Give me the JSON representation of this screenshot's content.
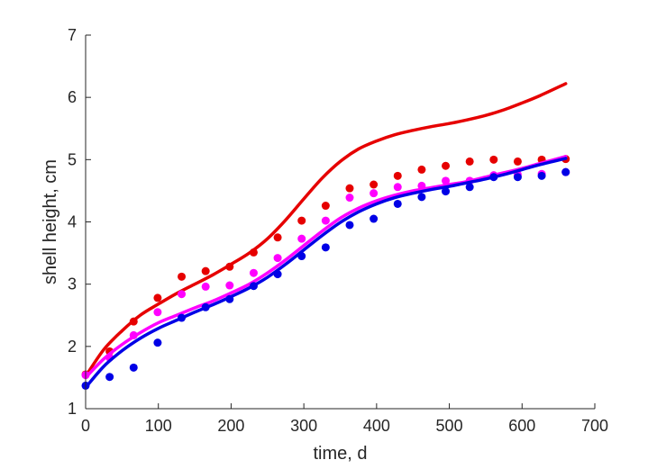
{
  "chart_data": {
    "type": "scatter",
    "title": "",
    "xlabel": "time, d",
    "ylabel": "shell height, cm",
    "xlim": [
      0,
      700
    ],
    "ylim": [
      1,
      7
    ],
    "xticks": [
      0,
      100,
      200,
      300,
      400,
      500,
      600,
      700
    ],
    "yticks": [
      1,
      2,
      3,
      4,
      5,
      6,
      7
    ],
    "grid": false,
    "legend": "none",
    "series": [
      {
        "color": "#e60000",
        "points": {
          "x": [
            0,
            33,
            66,
            99,
            132,
            165,
            198,
            231,
            264,
            297,
            330,
            363,
            396,
            429,
            462,
            495,
            528,
            561,
            594,
            627,
            660
          ],
          "y": [
            1.55,
            1.92,
            2.4,
            2.78,
            3.12,
            3.21,
            3.28,
            3.51,
            3.75,
            4.02,
            4.26,
            4.54,
            4.6,
            4.74,
            4.84,
            4.9,
            4.97,
            5.0,
            4.97,
            5.0,
            5.01
          ]
        },
        "fit": {
          "x": [
            0,
            25,
            50,
            75,
            100,
            125,
            150,
            175,
            200,
            225,
            250,
            275,
            300,
            325,
            350,
            375,
            400,
            425,
            450,
            475,
            500,
            525,
            550,
            575,
            600,
            625,
            660
          ],
          "y": [
            1.52,
            1.95,
            2.25,
            2.5,
            2.68,
            2.85,
            3.0,
            3.15,
            3.32,
            3.5,
            3.73,
            4.03,
            4.37,
            4.7,
            4.97,
            5.17,
            5.3,
            5.4,
            5.47,
            5.53,
            5.58,
            5.64,
            5.71,
            5.8,
            5.91,
            6.03,
            6.22
          ]
        }
      },
      {
        "color": "#ff00ff",
        "points": {
          "x": [
            0,
            33,
            66,
            99,
            132,
            165,
            198,
            231,
            264,
            297,
            330,
            363,
            396,
            429,
            462,
            495,
            528,
            561,
            594,
            627,
            660
          ],
          "y": [
            1.54,
            1.82,
            2.18,
            2.55,
            2.84,
            2.96,
            2.98,
            3.18,
            3.42,
            3.73,
            4.02,
            4.39,
            4.46,
            4.56,
            4.58,
            4.66,
            4.66,
            4.75,
            4.76,
            4.77,
            4.8
          ]
        },
        "fit": {
          "x": [
            0,
            25,
            50,
            75,
            100,
            125,
            150,
            175,
            200,
            225,
            250,
            275,
            300,
            325,
            350,
            375,
            400,
            425,
            450,
            475,
            500,
            525,
            550,
            575,
            600,
            625,
            660
          ],
          "y": [
            1.5,
            1.8,
            2.03,
            2.22,
            2.38,
            2.5,
            2.62,
            2.73,
            2.86,
            3.0,
            3.18,
            3.39,
            3.62,
            3.85,
            4.06,
            4.22,
            4.34,
            4.43,
            4.5,
            4.55,
            4.6,
            4.65,
            4.72,
            4.79,
            4.86,
            4.94,
            5.05
          ]
        }
      },
      {
        "color": "#0000e6",
        "points": {
          "x": [
            0,
            33,
            66,
            99,
            132,
            165,
            198,
            231,
            264,
            297,
            330,
            363,
            396,
            429,
            462,
            495,
            528,
            561,
            594,
            627,
            660
          ],
          "y": [
            1.37,
            1.51,
            1.66,
            2.06,
            2.46,
            2.63,
            2.76,
            2.97,
            3.16,
            3.45,
            3.59,
            3.95,
            4.05,
            4.29,
            4.4,
            4.49,
            4.56,
            4.72,
            4.72,
            4.74,
            4.8
          ]
        },
        "fit": {
          "x": [
            0,
            25,
            50,
            75,
            100,
            125,
            150,
            175,
            200,
            225,
            250,
            275,
            300,
            325,
            350,
            375,
            400,
            425,
            450,
            475,
            500,
            525,
            550,
            575,
            600,
            625,
            660
          ],
          "y": [
            1.34,
            1.68,
            1.93,
            2.13,
            2.29,
            2.42,
            2.55,
            2.67,
            2.8,
            2.94,
            3.11,
            3.32,
            3.55,
            3.78,
            3.99,
            4.16,
            4.29,
            4.39,
            4.46,
            4.52,
            4.57,
            4.63,
            4.69,
            4.76,
            4.84,
            4.92,
            5.02
          ]
        }
      }
    ]
  }
}
